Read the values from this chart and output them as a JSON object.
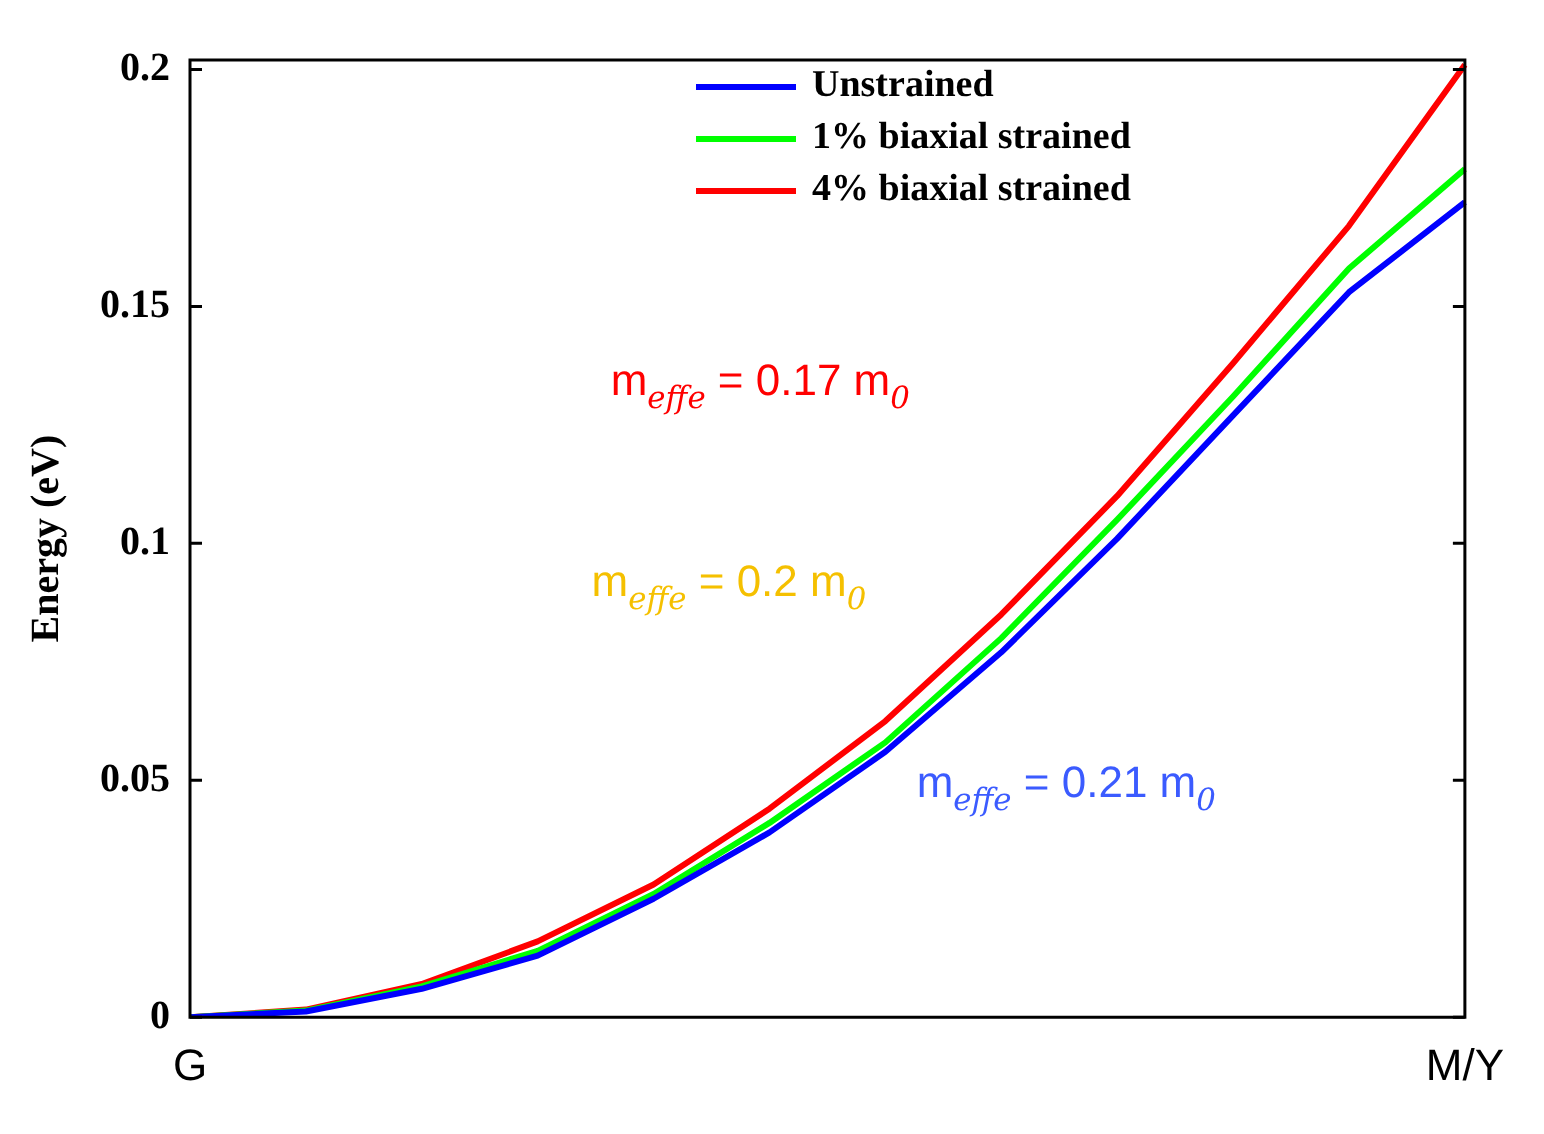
{
  "chart_data": {
    "type": "line",
    "ylabel": "Energy (eV)",
    "categories": [
      "G",
      null,
      null,
      null,
      null,
      null,
      null,
      null,
      null,
      null,
      null,
      "M/Y"
    ],
    "ylim": [
      0,
      0.202
    ],
    "yticks": [
      0,
      0.05,
      0.1,
      0.15,
      0.2
    ],
    "grid": false,
    "legend": "top",
    "marker": "none",
    "line_style": "solid",
    "series": [
      {
        "name": "Unstrained",
        "color": "#0000ff",
        "values": [
          0,
          0.0012,
          0.006,
          0.013,
          0.025,
          0.039,
          0.056,
          0.077,
          0.101,
          0.127,
          0.153,
          0.172
        ]
      },
      {
        "name": "1% biaxial strained",
        "color": "#00ff00",
        "values": [
          0,
          0.0014,
          0.0065,
          0.014,
          0.026,
          0.041,
          0.058,
          0.08,
          0.105,
          0.131,
          0.158,
          0.179
        ]
      },
      {
        "name": "4% biaxial strained",
        "color": "#ff0000",
        "values": [
          0,
          0.0016,
          0.007,
          0.016,
          0.028,
          0.044,
          0.0625,
          0.085,
          0.11,
          0.138,
          0.167,
          0.201
        ]
      }
    ],
    "annotations": [
      "m$_{effe}$ = 0.17 m$_{0}$",
      "m$_{effe}$ = 0.2 m$_{0}$",
      "m$_{effe}$ = 0.21 m$_{0}$"
    ]
  }
}
